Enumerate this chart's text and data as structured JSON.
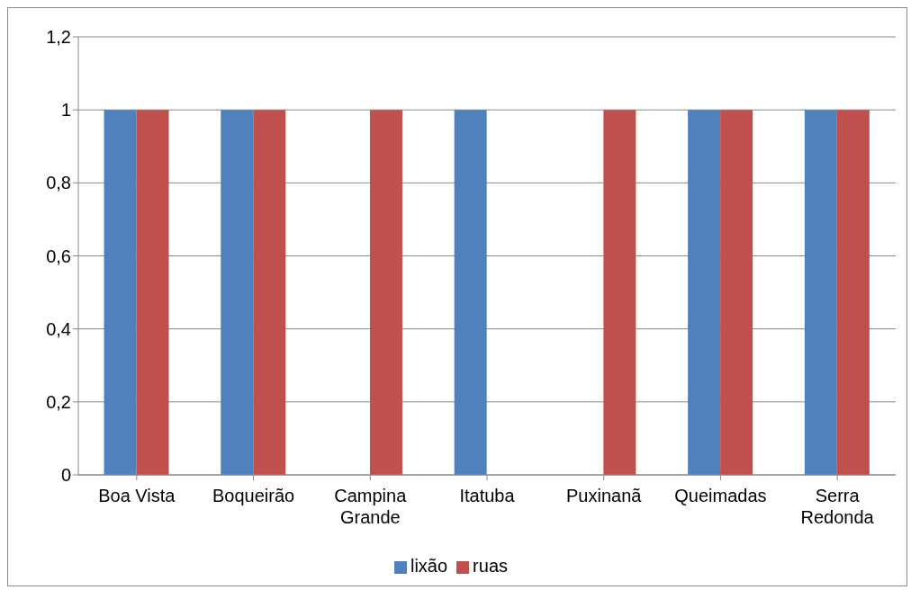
{
  "chart_data": {
    "type": "bar",
    "categories": [
      "Boa Vista",
      "Boqueirão",
      "Campina Grande",
      "Itatuba",
      "Puxinanã",
      "Queimadas",
      "Serra Redonda"
    ],
    "series": [
      {
        "name": "lixão",
        "color": "#4f81bd",
        "values": [
          1,
          1,
          0,
          1,
          0,
          1,
          1
        ]
      },
      {
        "name": "ruas",
        "color": "#c0504d",
        "values": [
          1,
          1,
          1,
          0,
          1,
          1,
          1
        ]
      }
    ],
    "ylim": [
      0,
      1.2
    ],
    "yticks": [
      0,
      {
        "value": 0.2,
        "label": "0,2"
      },
      {
        "value": 0.4,
        "label": "0,4"
      },
      {
        "value": 0.6,
        "label": "0,6"
      },
      {
        "value": 0.8,
        "label": "0,8"
      },
      1,
      {
        "value": 1.2,
        "label": "1,2"
      }
    ],
    "grid": "y",
    "legend": "bottom"
  }
}
